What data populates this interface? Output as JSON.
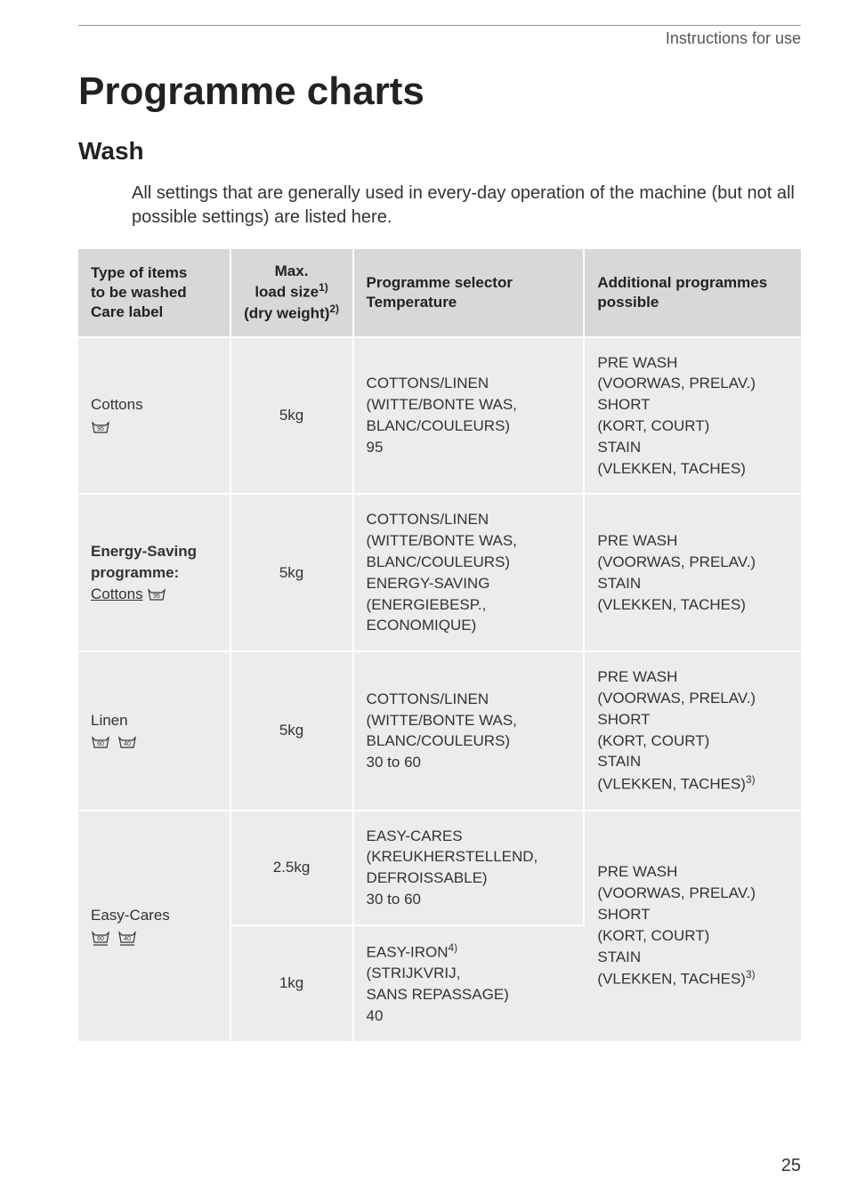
{
  "header": "Instructions for use",
  "title": "Programme charts",
  "section": "Wash",
  "intro": "All settings that are generally used in every-day operation of the machine (but not all possible settings) are listed here.",
  "table": {
    "headers": {
      "col1_line1": "Type of items",
      "col1_line2": "to be washed",
      "col1_line3": "Care label",
      "col2_line1": "Max.",
      "col2_line2": "load size",
      "col2_sup1": "1)",
      "col2_line3": "(dry weight)",
      "col2_sup2": "2)",
      "col3_line1": "Programme selector",
      "col3_line2": "Temperature",
      "col4_line1": "Additional programmes",
      "col4_line2": "possible"
    },
    "rows": [
      {
        "fabric": "Cottons",
        "icons": [
          "95"
        ],
        "load": "5kg",
        "programme": "COTTONS/LINEN\n(WITTE/BONTE WAS,\nBLANC/COULEURS)\n95",
        "additional": "PRE WASH\n(VOORWAS, PRELAV.)\nSHORT\n(KORT, COURT)\nSTAIN\n(VLEKKEN, TACHES)"
      },
      {
        "fabric_line1": "Energy-Saving",
        "fabric_line2": "programme:",
        "fabric_line3": "Cottons",
        "fabric_bold": true,
        "icons": [
          "95"
        ],
        "load": "5kg",
        "programme": "COTTONS/LINEN\n(WITTE/BONTE WAS,\nBLANC/COULEURS)\nENERGY-SAVING\n(ENERGIEBESP.,\nECONOMIQUE)",
        "additional": "PRE WASH\n(VOORWAS, PRELAV.)\nSTAIN\n(VLEKKEN, TACHES)"
      },
      {
        "fabric": "Linen",
        "icons": [
          "60",
          "40"
        ],
        "load": "5kg",
        "programme": "COTTONS/LINEN\n(WITTE/BONTE WAS,\nBLANC/COULEURS)\n30 to 60",
        "additional": "PRE WASH\n(VOORWAS, PRELAV.)\nSHORT\n(KORT, COURT)\nSTAIN\n(VLEKKEN, TACHES)",
        "additional_sup": "3)"
      },
      {
        "fabric": "Easy-Cares",
        "icons": [
          "60",
          "40"
        ],
        "icon_underline": true,
        "rowspan_additional": true,
        "sub": [
          {
            "load": "2.5kg",
            "programme": "EASY-CARES\n(KREUKHERSTELLEND,\nDEFROISSABLE)\n30 to 60"
          },
          {
            "load": "1kg",
            "programme_line1": "EASY-IRON",
            "programme_sup": "4)",
            "programme_rest": "\n(STRIJKVRIJ,\nSANS REPASSAGE)\n40"
          }
        ],
        "additional": "PRE WASH\n(VOORWAS, PRELAV.)\nSHORT\n(KORT, COURT)\nSTAIN\n(VLEKKEN, TACHES)",
        "additional_sup": "3)"
      }
    ]
  },
  "pageNumber": "25"
}
